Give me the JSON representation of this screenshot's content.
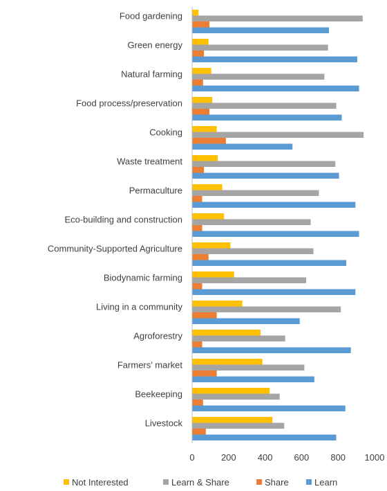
{
  "chart_data": {
    "type": "bar",
    "orientation": "horizontal",
    "title": "",
    "xlabel": "",
    "ylabel": "",
    "xlim": [
      0,
      1000
    ],
    "xticks": [
      0,
      200,
      400,
      600,
      800,
      1000
    ],
    "grid": false,
    "legend": "bottom",
    "categories": [
      "Food gardening",
      "Green energy",
      "Natural farming",
      "Food process/preservation",
      "Cooking",
      "Waste treatment",
      "Permaculture",
      "Eco-building and construction",
      "Community-Supported Agriculture",
      "Biodynamic farming",
      "Living in a community",
      "Agroforestry",
      "Farmers’ market",
      "Beekeeping",
      "Livestock"
    ],
    "series": [
      {
        "name": "Not Interested",
        "color": "#FFC000",
        "values": [
          35,
          90,
          105,
          110,
          135,
          140,
          165,
          175,
          210,
          230,
          275,
          375,
          385,
          425,
          440
        ]
      },
      {
        "name": "Learn & Share",
        "color": "#A5A5A5",
        "values": [
          935,
          745,
          725,
          790,
          940,
          785,
          695,
          650,
          665,
          625,
          815,
          510,
          615,
          480,
          505
        ]
      },
      {
        "name": "Share",
        "color": "#ED7D31",
        "values": [
          95,
          65,
          60,
          95,
          185,
          65,
          55,
          55,
          90,
          55,
          135,
          55,
          135,
          60,
          75
        ]
      },
      {
        "name": "Learn",
        "color": "#5B9BD5",
        "values": [
          750,
          905,
          915,
          820,
          550,
          805,
          895,
          915,
          845,
          895,
          590,
          870,
          670,
          840,
          790
        ]
      }
    ]
  }
}
